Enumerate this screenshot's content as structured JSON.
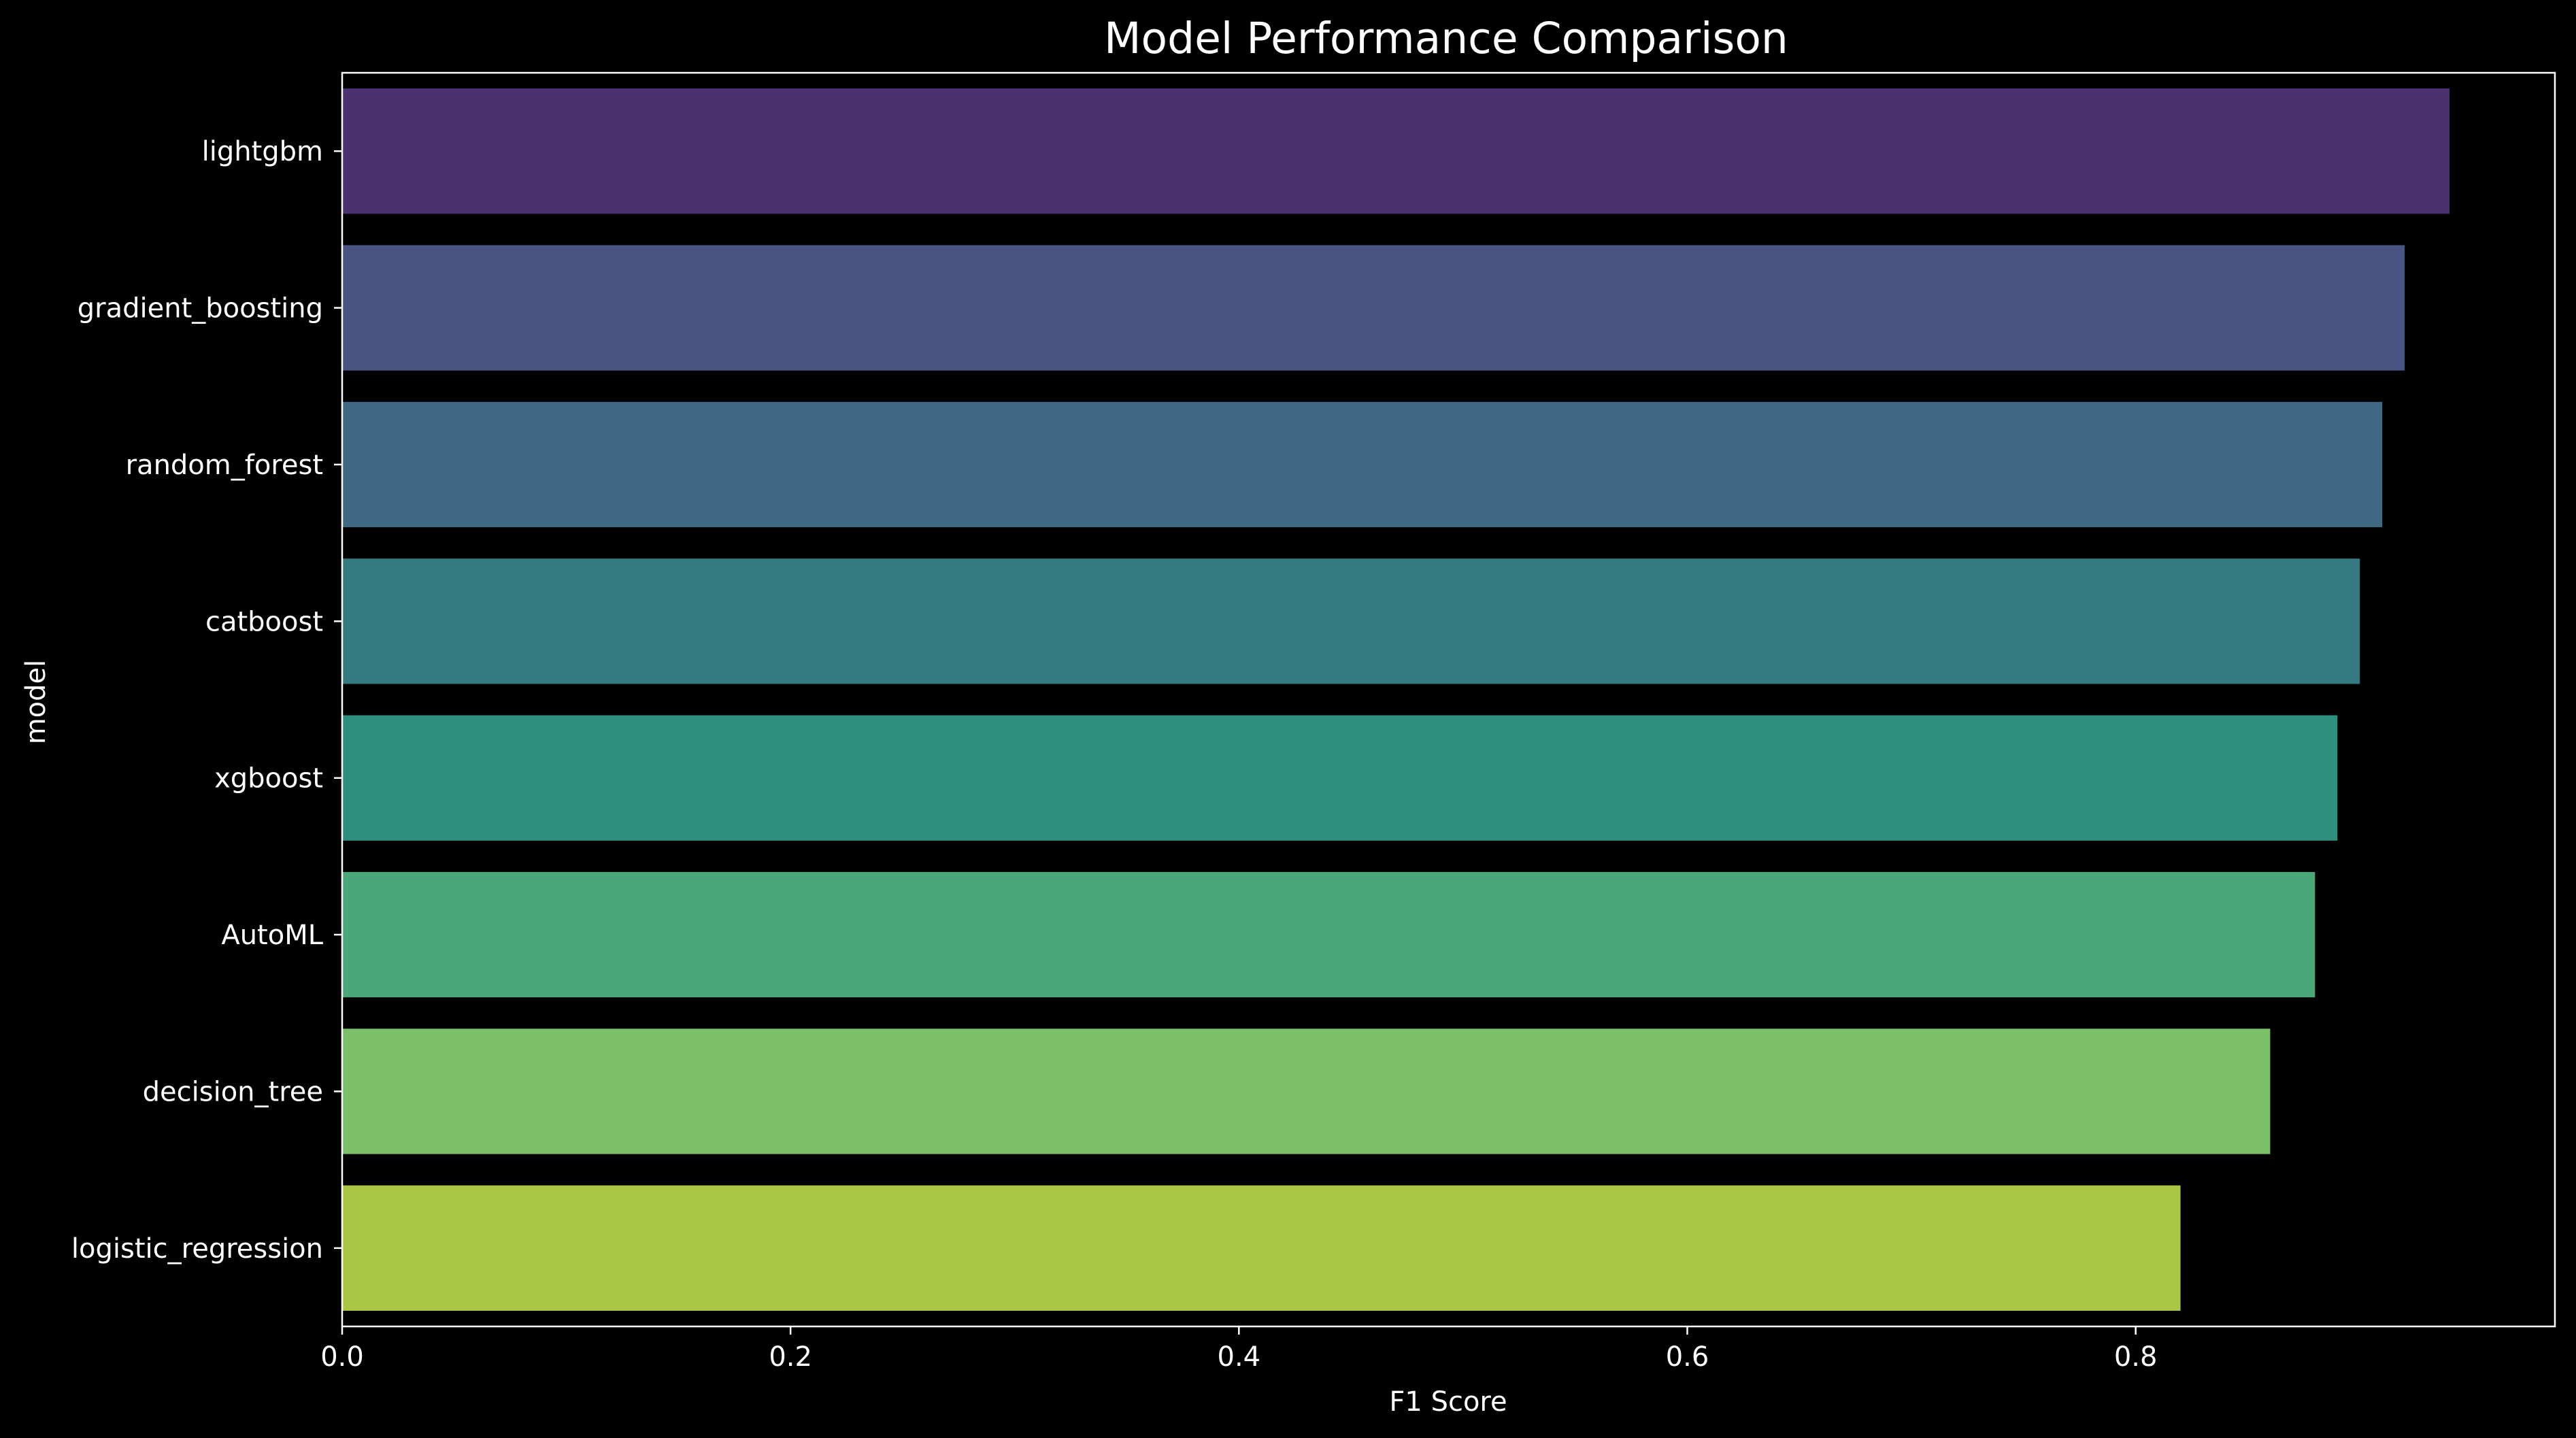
{
  "chart_data": {
    "type": "bar",
    "orientation": "horizontal",
    "title": "Model Performance Comparison",
    "xlabel": "F1 Score",
    "ylabel": "model",
    "xlim": [
      0,
      0.987
    ],
    "xticks": [
      0.0,
      0.2,
      0.4,
      0.6,
      0.8
    ],
    "xtick_labels": [
      "0.0",
      "0.2",
      "0.4",
      "0.6",
      "0.8"
    ],
    "grid": false,
    "categories": [
      "lightgbm",
      "gradient_boosting",
      "random_forest",
      "catboost",
      "xgboost",
      "AutoML",
      "decision_tree",
      "logistic_regression"
    ],
    "values": [
      0.94,
      0.92,
      0.91,
      0.9,
      0.89,
      0.88,
      0.86,
      0.82
    ],
    "colors": [
      "#4a3170",
      "#485583",
      "#3f6883",
      "#347a80",
      "#2e8f7c",
      "#4aa878",
      "#7bbf69",
      "#a9c744"
    ],
    "background": "#000000",
    "foreground": "#ffffff"
  }
}
